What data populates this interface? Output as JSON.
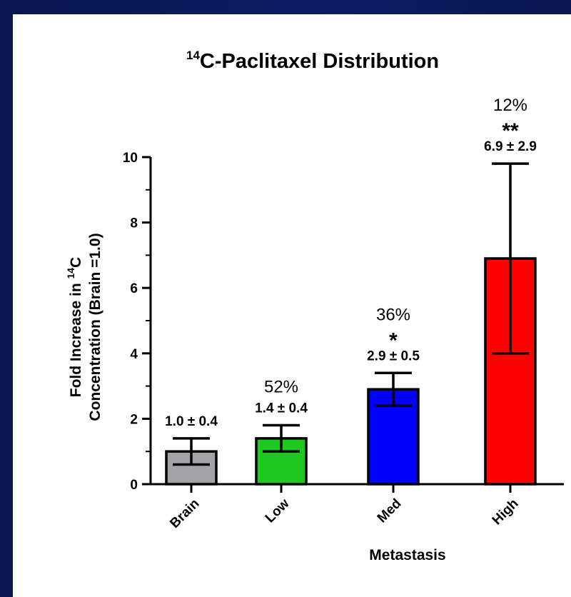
{
  "chart_data": {
    "type": "bar",
    "title_main": "C-Paclitaxel Distribution",
    "title_sup": "14",
    "xlabel": "Metastasis",
    "ylabel_line1": "Fold Increase in",
    "ylabel_sup": "14",
    "ylabel_line1_end": "C",
    "ylabel_line2": "Concentration (Brain =1.0)",
    "ylim": [
      0,
      10
    ],
    "yticks": [
      "0",
      "2",
      "4",
      "6",
      "8",
      "10"
    ],
    "categories": [
      "Brain",
      "Low",
      "Med",
      "High"
    ],
    "values": [
      1.0,
      1.4,
      2.9,
      6.9
    ],
    "errors": [
      0.4,
      0.4,
      0.5,
      2.9
    ],
    "colors": [
      "#a3a3a8",
      "#1ec81e",
      "#0000ff",
      "#ff0000"
    ],
    "value_labels": [
      "1.0 ± 0.4",
      "1.4 ± 0.4",
      "2.9 ± 0.5",
      "6.9 ± 2.9"
    ],
    "percent_labels": [
      "",
      "52%",
      "36%",
      "12%"
    ],
    "significance": [
      "",
      "",
      "*",
      "**"
    ]
  }
}
